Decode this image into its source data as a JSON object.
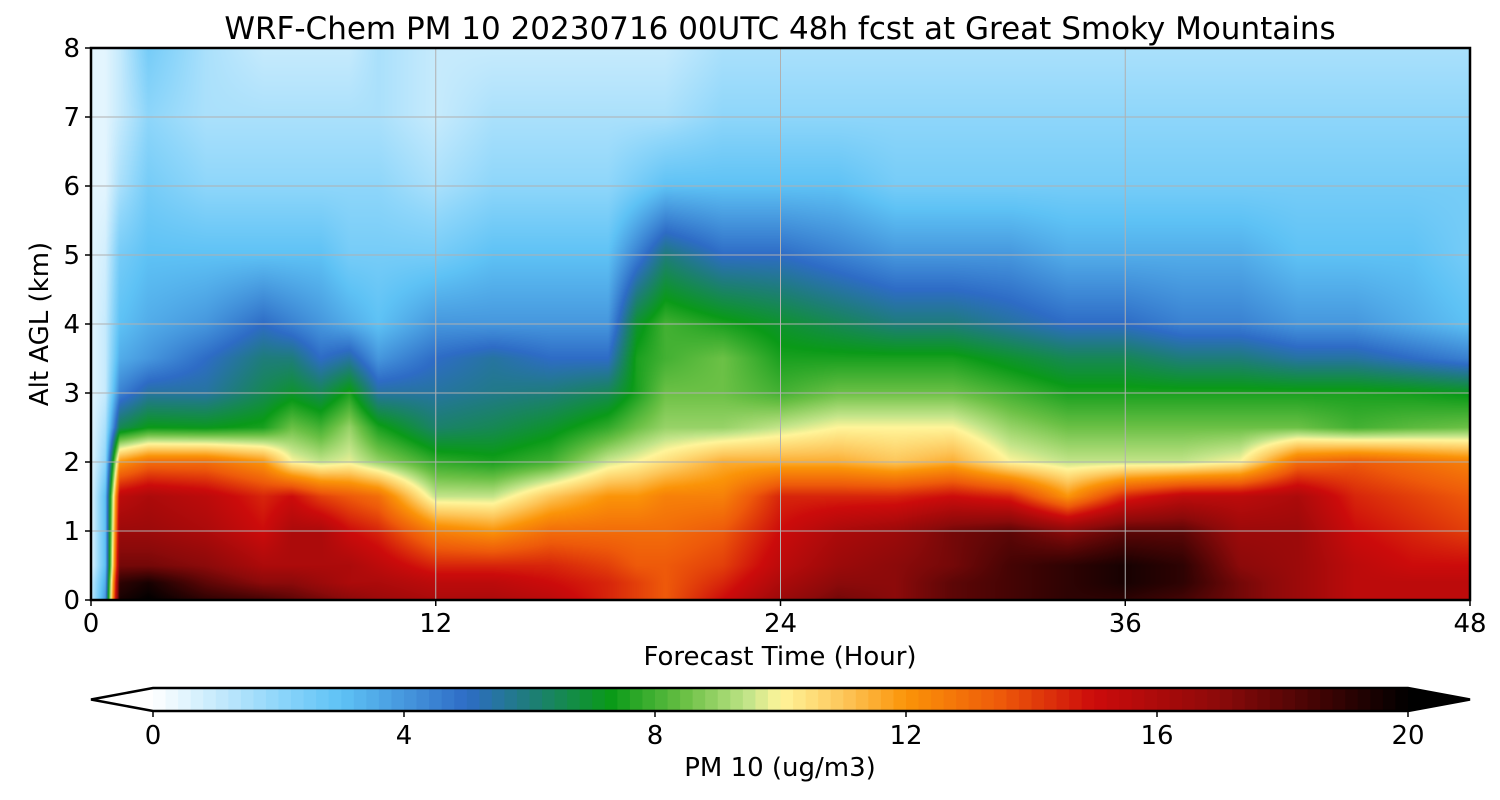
{
  "chart_data": {
    "type": "heatmap",
    "title": "WRF-Chem PM 10  20230716 00UTC 48h fcst at Great Smoky Mountains",
    "xlabel": "Forecast Time (Hour)",
    "ylabel": "Alt AGL (km)",
    "xlim": [
      0,
      48
    ],
    "ylim": [
      0,
      8
    ],
    "xticks": [
      "0",
      "12",
      "24",
      "36",
      "48"
    ],
    "yticks": [
      "0",
      "1",
      "2",
      "3",
      "4",
      "5",
      "6",
      "7",
      "8"
    ],
    "grid": true,
    "colorbar": {
      "label": "PM 10  (ug/m3)",
      "ticks": [
        "0",
        "4",
        "8",
        "12",
        "16",
        "20"
      ],
      "range": [
        0,
        20
      ],
      "extend": "both",
      "orientation": "horizontal",
      "placement": "bottom",
      "colors": [
        {
          "v": 0,
          "c": "#ffffff"
        },
        {
          "v": 2,
          "c": "#8ed6fa"
        },
        {
          "v": 3,
          "c": "#5ec2f5"
        },
        {
          "v": 5,
          "c": "#2e6cc6"
        },
        {
          "v": 6,
          "c": "#1e7d7a"
        },
        {
          "v": 7.3,
          "c": "#0a9a18"
        },
        {
          "v": 8.5,
          "c": "#6cc146"
        },
        {
          "v": 9.5,
          "c": "#c4e58a"
        },
        {
          "v": 10,
          "c": "#fff59a"
        },
        {
          "v": 11,
          "c": "#fdc65a"
        },
        {
          "v": 12,
          "c": "#fb9408"
        },
        {
          "v": 13.5,
          "c": "#ee5a0a"
        },
        {
          "v": 15,
          "c": "#cc0b0b"
        },
        {
          "v": 17,
          "c": "#8c0a0a"
        },
        {
          "v": 18.5,
          "c": "#450404"
        },
        {
          "v": 20,
          "c": "#000000"
        }
      ]
    },
    "altitudes_km": [
      0,
      0.25,
      0.5,
      1,
      1.5,
      2,
      2.5,
      3,
      3.5,
      4,
      5,
      6,
      7,
      8
    ],
    "times_h": [
      0,
      0.5,
      1,
      2,
      4,
      6,
      7,
      8,
      9,
      10,
      12,
      14,
      16,
      18,
      19,
      20,
      22,
      24,
      26,
      28,
      30,
      32,
      34,
      36,
      38,
      40,
      42,
      44,
      46,
      48
    ],
    "values": [
      [
        1,
        1,
        0.5,
        0.5,
        0.5,
        0.5,
        0.5,
        0.5,
        0.5,
        0.5,
        0.5,
        0.5,
        0.5,
        0.5
      ],
      [
        4,
        3.5,
        3,
        3,
        3,
        2,
        1.5,
        1,
        1,
        1,
        0.8,
        0.5,
        0.5,
        0.5
      ],
      [
        19.5,
        19,
        17.5,
        16.5,
        15.5,
        12,
        6.5,
        4.5,
        3.5,
        3,
        2.5,
        1.5,
        1,
        1
      ],
      [
        20,
        19.5,
        17.5,
        16.5,
        16,
        13,
        7.3,
        5.5,
        4,
        3.5,
        3,
        2.5,
        2,
        2.5
      ],
      [
        19,
        18,
        17,
        16,
        15.5,
        13,
        7.2,
        5.5,
        5,
        4,
        3,
        2,
        1.5,
        1.5
      ],
      [
        18.5,
        17,
        16,
        15,
        14.5,
        12,
        7.5,
        6.5,
        6,
        5,
        3,
        2,
        1.5,
        1
      ],
      [
        18,
        17,
        16,
        16,
        15,
        10,
        8.5,
        7,
        6,
        4.5,
        3,
        2,
        1.5,
        1
      ],
      [
        17.5,
        16.5,
        16,
        16,
        14,
        9.5,
        8,
        6.5,
        5,
        4,
        3,
        2,
        1.5,
        1
      ],
      [
        17,
        16,
        16,
        15,
        13.5,
        9.8,
        9,
        7.5,
        5.5,
        3.5,
        2.5,
        2,
        1.5,
        1
      ],
      [
        16.5,
        16,
        15.5,
        14.5,
        13,
        9,
        7.5,
        5.5,
        4,
        3,
        2.5,
        2,
        1.5,
        1.5
      ],
      [
        16,
        15.5,
        14.5,
        12.5,
        9.5,
        7.8,
        6.2,
        5.5,
        5,
        4,
        2.5,
        1.5,
        1,
        1
      ],
      [
        16,
        15.5,
        14.5,
        12,
        9.5,
        7.5,
        6.5,
        5.8,
        5.5,
        4,
        3,
        2,
        1.5,
        1
      ],
      [
        15.5,
        15,
        14.5,
        13,
        11,
        8,
        7,
        6,
        5,
        4,
        3,
        2,
        1.5,
        1
      ],
      [
        14.5,
        14.5,
        14,
        13,
        12,
        9.6,
        7.8,
        6.5,
        5,
        4,
        3,
        2,
        1.5,
        1
      ],
      [
        14,
        14,
        13.5,
        13,
        12,
        10,
        8.5,
        7.5,
        7.5,
        7,
        4.5,
        2.5,
        1.5,
        1
      ],
      [
        13.5,
        13.5,
        13.5,
        13,
        12.5,
        10.5,
        9,
        8.5,
        8,
        8,
        6,
        3,
        1.5,
        1
      ],
      [
        15,
        14.5,
        14,
        13.5,
        12.5,
        11.5,
        9,
        8.5,
        8.5,
        7.5,
        5,
        3,
        2,
        1.5
      ],
      [
        16.5,
        16,
        15.5,
        15,
        14.5,
        11.5,
        9.5,
        8,
        7.5,
        7,
        5,
        3,
        2,
        1.5
      ],
      [
        17.5,
        17,
        16.5,
        16,
        14.5,
        11.5,
        10,
        8.5,
        7.5,
        6.5,
        4.5,
        3,
        2,
        1.5
      ],
      [
        17,
        17,
        17,
        16.5,
        14.5,
        11,
        10,
        8.5,
        7.5,
        6,
        4,
        2.5,
        2,
        1.5
      ],
      [
        18,
        18,
        17.5,
        17.5,
        15,
        11.5,
        10,
        8.5,
        7.5,
        6,
        4,
        2.5,
        2,
        1.5
      ],
      [
        18.5,
        18.5,
        18.5,
        18,
        14.5,
        10,
        9,
        8,
        7,
        5.5,
        4,
        2.5,
        2,
        1.5
      ],
      [
        19,
        19,
        19,
        17,
        12,
        9.5,
        8.5,
        7.5,
        6.5,
        5,
        3.5,
        2.5,
        2,
        1.5
      ],
      [
        19,
        19.5,
        19.5,
        18,
        14.5,
        9.5,
        8.5,
        7.5,
        6.5,
        5,
        3.5,
        2.5,
        2,
        1.5
      ],
      [
        18.5,
        19,
        19,
        18,
        15.5,
        9.5,
        8.5,
        7.5,
        6,
        4.5,
        3.5,
        2.5,
        2,
        1.5
      ],
      [
        17.5,
        17.5,
        17,
        16.5,
        15.5,
        10,
        8.5,
        7.5,
        6,
        4.5,
        3.5,
        2.5,
        2,
        1.5
      ],
      [
        16.5,
        16.5,
        16.5,
        16.5,
        16,
        13,
        8.5,
        7.5,
        5.5,
        4,
        3,
        2.5,
        2,
        1.5
      ],
      [
        15.5,
        15.5,
        15.5,
        15,
        14.5,
        13.5,
        8,
        7.5,
        5.5,
        4,
        3,
        2.5,
        2,
        1.5
      ],
      [
        15.5,
        15.5,
        15,
        14.5,
        14,
        13,
        8.3,
        7.4,
        5,
        3.5,
        3,
        2.5,
        2,
        1.5
      ],
      [
        15.5,
        15.5,
        15,
        14,
        13.5,
        12.5,
        8.5,
        7.2,
        4.5,
        3,
        2.5,
        2.5,
        2,
        1.5
      ]
    ]
  }
}
